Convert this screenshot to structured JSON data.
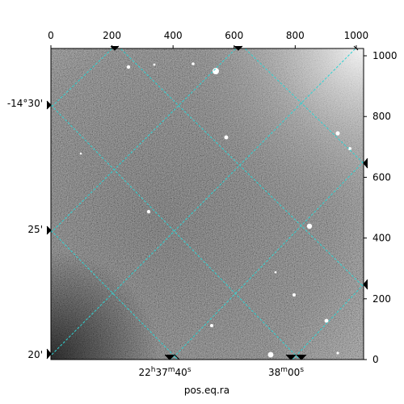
{
  "chart_data": {
    "type": "image",
    "xlabel": "pos.eq.ra",
    "pixel_axis_x": {
      "range": [
        0,
        1024
      ],
      "ticks": [
        0,
        200,
        400,
        600,
        800,
        1000
      ]
    },
    "pixel_axis_y": {
      "range": [
        0,
        1024
      ],
      "ticks": [
        0,
        200,
        400,
        600,
        800,
        1000
      ]
    },
    "ra_ticks": [
      {
        "label_main": "22",
        "h": "h",
        "m_val": "37",
        "m": "m",
        "s_val": "40",
        "s": "s"
      },
      {
        "label_main": "38",
        "m": "m",
        "s_val": "00",
        "s": "s"
      }
    ],
    "dec_ticks": [
      "-14°30'",
      "25'",
      "20'"
    ],
    "grid": true,
    "grid_color": "#2fd3d3",
    "colormap": "gray"
  }
}
